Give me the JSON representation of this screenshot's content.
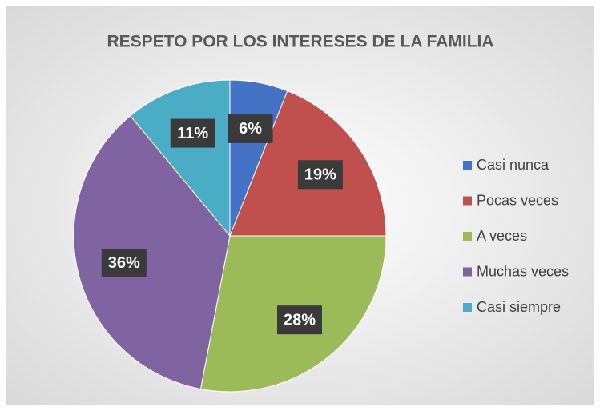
{
  "chart_data": {
    "type": "pie",
    "title": "RESPETO POR LOS INTERESES DE LA FAMILIA",
    "categories": [
      "Casi nunca",
      "Pocas veces",
      "A veces",
      "Muchas veces",
      "Casi siempre"
    ],
    "values": [
      6,
      19,
      28,
      36,
      11
    ],
    "value_labels": [
      "6%",
      "19%",
      "28%",
      "36%",
      "11%"
    ],
    "colors": [
      "#4472c4",
      "#c0504d",
      "#9bbb59",
      "#8064a2",
      "#4bacc6"
    ],
    "legend": "right"
  }
}
